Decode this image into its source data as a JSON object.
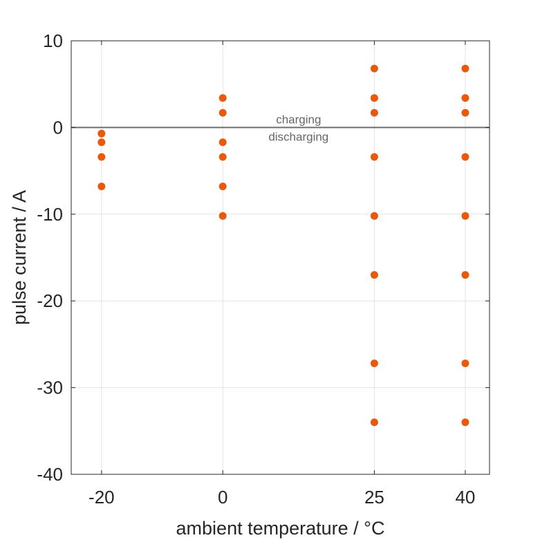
{
  "chart_data": {
    "type": "scatter",
    "title": "",
    "xlabel": "ambient temperature / °C",
    "ylabel": "pulse current / A",
    "xticks": [
      -20,
      0,
      25,
      40
    ],
    "xtick_labels": [
      "-20",
      "0",
      "25",
      "40"
    ],
    "yticks": [
      10,
      0,
      -10,
      -20,
      -30,
      -40
    ],
    "ytick_labels": [
      "10",
      "0",
      "-10",
      "-20",
      "-30",
      "-40"
    ],
    "xlim": [
      -25,
      44
    ],
    "ylim": [
      -40,
      10
    ],
    "grid": true,
    "marker_color": "#e8590c",
    "reference_line": {
      "y": 0,
      "label_above": "charging",
      "label_below": "discharging",
      "label_x": 12.5
    },
    "series": [
      {
        "name": "pulse currents",
        "points": [
          {
            "x": -20,
            "y": -0.7
          },
          {
            "x": -20,
            "y": -1.7
          },
          {
            "x": -20,
            "y": -3.4
          },
          {
            "x": -20,
            "y": -6.8
          },
          {
            "x": 0,
            "y": 3.4
          },
          {
            "x": 0,
            "y": 1.7
          },
          {
            "x": 0,
            "y": -1.7
          },
          {
            "x": 0,
            "y": -3.4
          },
          {
            "x": 0,
            "y": -6.8
          },
          {
            "x": 0,
            "y": -10.2
          },
          {
            "x": 25,
            "y": 6.8
          },
          {
            "x": 25,
            "y": 3.4
          },
          {
            "x": 25,
            "y": 1.7
          },
          {
            "x": 25,
            "y": -3.4
          },
          {
            "x": 25,
            "y": -10.2
          },
          {
            "x": 25,
            "y": -17
          },
          {
            "x": 25,
            "y": -27.2
          },
          {
            "x": 25,
            "y": -34
          },
          {
            "x": 40,
            "y": 6.8
          },
          {
            "x": 40,
            "y": 3.4
          },
          {
            "x": 40,
            "y": 1.7
          },
          {
            "x": 40,
            "y": -3.4
          },
          {
            "x": 40,
            "y": -10.2
          },
          {
            "x": 40,
            "y": -17
          },
          {
            "x": 40,
            "y": -27.2
          },
          {
            "x": 40,
            "y": -34
          }
        ]
      }
    ]
  }
}
